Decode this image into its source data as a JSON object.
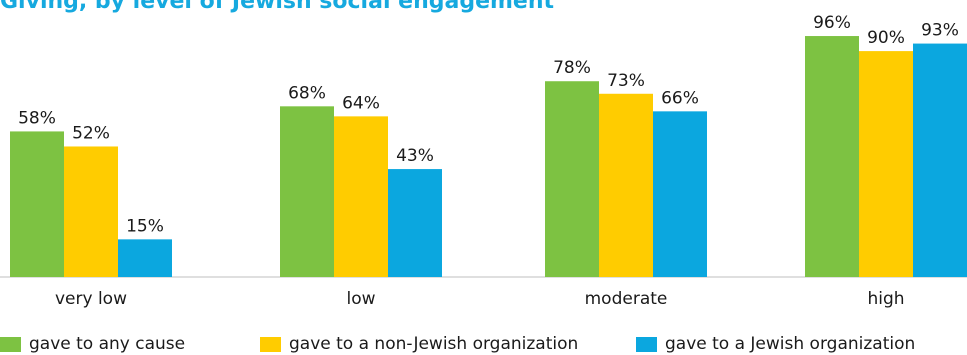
{
  "chart_data": {
    "type": "bar",
    "title": "Giving, by level of Jewish social engagement",
    "categories": [
      "very low",
      "low",
      "moderate",
      "high"
    ],
    "series": [
      {
        "name": "gave to any cause",
        "color": "#7dc242",
        "values": [
          58,
          68,
          78,
          96
        ]
      },
      {
        "name": "gave to a non-Jewish organization",
        "color": "#ffcc00",
        "values": [
          52,
          64,
          73,
          90
        ]
      },
      {
        "name": "gave to a Jewish organization",
        "color": "#0ba7df",
        "values": [
          15,
          43,
          66,
          93
        ]
      }
    ],
    "value_suffix": "%",
    "ylim": [
      0,
      100
    ],
    "grid": false,
    "legend_position": "bottom"
  }
}
